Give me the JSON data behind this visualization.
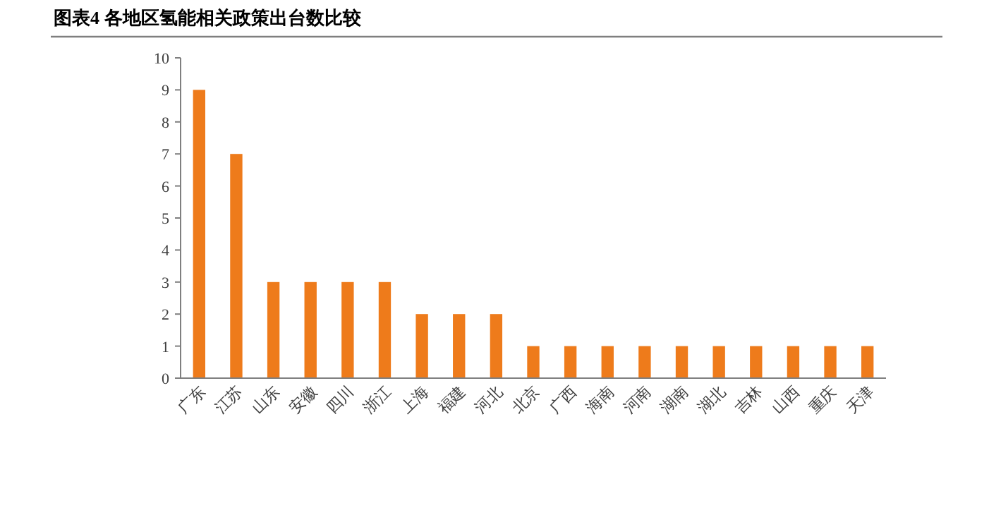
{
  "chart_data": {
    "type": "bar",
    "title": "图表4 各地区氢能相关政策出台数比较",
    "categories": [
      "广东",
      "江苏",
      "山东",
      "安徽",
      "四川",
      "浙江",
      "上海",
      "福建",
      "河北",
      "北京",
      "广西",
      "海南",
      "河南",
      "湖南",
      "湖北",
      "吉林",
      "山西",
      "重庆",
      "天津"
    ],
    "values": [
      9,
      7,
      3,
      3,
      3,
      3,
      2,
      2,
      2,
      1,
      1,
      1,
      1,
      1,
      1,
      1,
      1,
      1,
      1
    ],
    "color": "#ee7b1b",
    "ylim": [
      0,
      10
    ],
    "yticks": [
      0,
      1,
      2,
      3,
      4,
      5,
      6,
      7,
      8,
      9,
      10
    ],
    "grid": false
  }
}
